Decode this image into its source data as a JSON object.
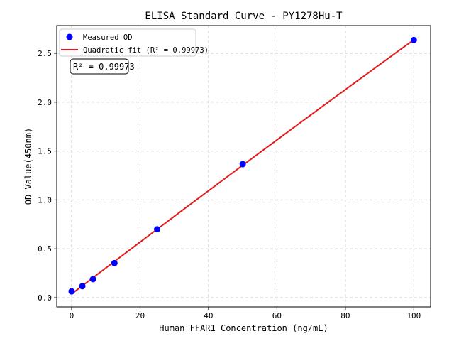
{
  "chart_data": {
    "type": "scatter",
    "title": "ELISA Standard Curve - PY1278Hu-T",
    "xlabel": "Human FFAR1 Concentration (ng/mL)",
    "ylabel": "OD Value(450nm)",
    "xlim": [
      -4.35,
      104.9
    ],
    "ylim": [
      -0.094,
      2.783
    ],
    "xticks": [
      0,
      20,
      40,
      60,
      80,
      100
    ],
    "yticks": [
      0.0,
      0.5,
      1.0,
      1.5,
      2.0,
      2.5
    ],
    "grid": true,
    "legend_position": "top-left",
    "series": [
      {
        "name": "Measured OD",
        "type": "scatter",
        "color": "#0000ff",
        "x": [
          0,
          3.125,
          6.25,
          12.5,
          25,
          50,
          100
        ],
        "y": [
          0.065,
          0.118,
          0.19,
          0.354,
          0.7,
          1.366,
          2.635
        ]
      },
      {
        "name": "Quadratic fit (R² = 0.99973)",
        "type": "line",
        "color": "#e31a1c"
      }
    ],
    "annotation": "R² = 0.99973"
  }
}
